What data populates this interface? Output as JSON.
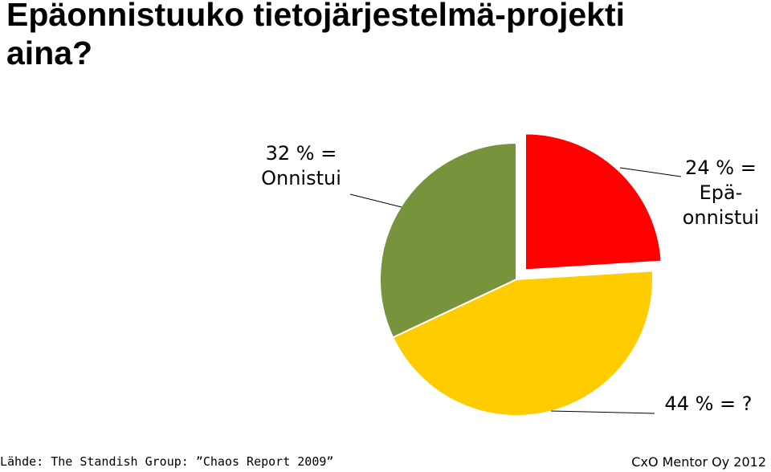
{
  "chart_data": {
    "type": "pie",
    "title": "Epäonnistuuko tietojärjestelmä-projekti aina?",
    "values": [
      24,
      44,
      32
    ],
    "value_labels": [
      "24 % = Epä-onnistui",
      "44 % = ?",
      "32 % = Onnistui"
    ],
    "colors": [
      "#ff0000",
      "#ffcc00",
      "#77933c"
    ],
    "source": "Lähde: The Standish Group: ”Chaos Report 2009”",
    "footer": "CxO Mentor Oy 2012"
  }
}
